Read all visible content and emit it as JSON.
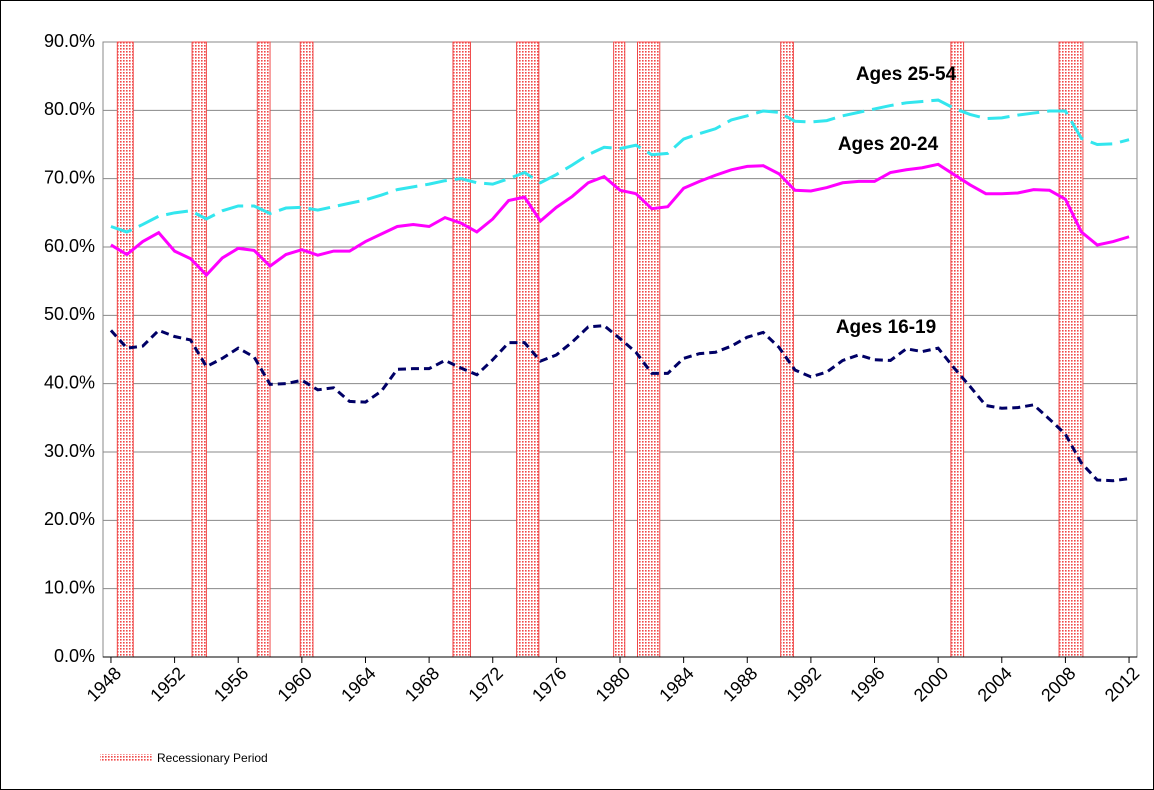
{
  "chart_data": {
    "type": "line",
    "x": [
      1948,
      1949,
      1950,
      1951,
      1952,
      1953,
      1954,
      1955,
      1956,
      1957,
      1958,
      1959,
      1960,
      1961,
      1962,
      1963,
      1964,
      1965,
      1966,
      1967,
      1968,
      1969,
      1970,
      1971,
      1972,
      1973,
      1974,
      1975,
      1976,
      1977,
      1978,
      1979,
      1980,
      1981,
      1982,
      1983,
      1984,
      1985,
      1986,
      1987,
      1988,
      1989,
      1990,
      1991,
      1992,
      1993,
      1994,
      1995,
      1996,
      1997,
      1998,
      1999,
      2000,
      2001,
      2002,
      2003,
      2004,
      2005,
      2006,
      2007,
      2008,
      2009,
      2010,
      2011,
      2012
    ],
    "series": [
      {
        "name": "Ages 25-54",
        "color": "#33e6ee",
        "linestyle": "long-dash",
        "values": [
          63.0,
          62.2,
          63.3,
          64.5,
          65.0,
          65.3,
          64.1,
          65.3,
          66.0,
          66.0,
          64.9,
          65.7,
          65.8,
          65.4,
          65.9,
          66.4,
          66.9,
          67.6,
          68.4,
          68.8,
          69.2,
          69.7,
          70.0,
          69.4,
          69.2,
          70.0,
          70.9,
          69.4,
          70.6,
          72.0,
          73.5,
          74.6,
          74.4,
          74.9,
          73.5,
          73.7,
          75.8,
          76.6,
          77.3,
          78.6,
          79.2,
          79.9,
          79.7,
          78.4,
          78.3,
          78.5,
          79.2,
          79.7,
          80.2,
          80.7,
          81.1,
          81.3,
          81.5,
          80.3,
          79.4,
          78.8,
          78.9,
          79.3,
          79.6,
          79.9,
          79.9,
          75.9,
          75.0,
          75.1,
          75.7
        ]
      },
      {
        "name": "Ages 20-24",
        "color": "#ff00ff",
        "linestyle": "solid",
        "values": [
          60.3,
          58.9,
          60.8,
          62.1,
          59.4,
          58.3,
          55.9,
          58.4,
          59.8,
          59.5,
          57.2,
          58.9,
          59.6,
          58.8,
          59.4,
          59.4,
          60.8,
          61.9,
          63.0,
          63.3,
          63.0,
          64.3,
          63.5,
          62.2,
          64.1,
          66.8,
          67.3,
          63.8,
          65.8,
          67.4,
          69.4,
          70.3,
          68.3,
          67.8,
          65.6,
          65.9,
          68.6,
          69.6,
          70.5,
          71.3,
          71.8,
          71.9,
          70.7,
          68.3,
          68.2,
          68.7,
          69.4,
          69.6,
          69.6,
          70.9,
          71.3,
          71.6,
          72.1,
          70.6,
          69.1,
          67.8,
          67.8,
          67.9,
          68.4,
          68.3,
          67.0,
          62.2,
          60.3,
          60.8,
          61.5
        ]
      },
      {
        "name": "Ages 16-19",
        "color": "#000066",
        "linestyle": "short-dash",
        "values": [
          47.8,
          45.2,
          45.5,
          47.8,
          46.9,
          46.4,
          42.5,
          43.7,
          45.2,
          43.9,
          39.9,
          40.0,
          40.5,
          39.1,
          39.4,
          37.4,
          37.3,
          38.9,
          42.1,
          42.2,
          42.2,
          43.4,
          42.3,
          41.3,
          43.5,
          46.0,
          46.0,
          43.3,
          44.2,
          46.1,
          48.3,
          48.5,
          46.6,
          44.6,
          41.5,
          41.5,
          43.7,
          44.4,
          44.6,
          45.5,
          46.8,
          47.5,
          45.3,
          42.0,
          41.0,
          41.7,
          43.4,
          44.2,
          43.5,
          43.4,
          45.1,
          44.7,
          45.2,
          42.3,
          39.6,
          36.8,
          36.4,
          36.5,
          36.9,
          34.8,
          32.6,
          28.4,
          25.9,
          25.8,
          26.1
        ]
      }
    ],
    "recessions": [
      [
        1948.4,
        1949.4
      ],
      [
        1953.1,
        1954.0
      ],
      [
        1957.2,
        1958.0
      ],
      [
        1959.9,
        1960.7
      ],
      [
        1969.5,
        1970.6
      ],
      [
        1973.5,
        1974.9
      ],
      [
        1979.6,
        1980.3
      ],
      [
        1981.1,
        1982.5
      ],
      [
        1990.1,
        1990.9
      ],
      [
        2000.8,
        2001.6
      ],
      [
        2007.6,
        2009.1
      ]
    ],
    "recession_label": "Recessionary Period",
    "xlim": [
      1947.5,
      2012.5
    ],
    "xticks": [
      1948,
      1952,
      1956,
      1960,
      1964,
      1968,
      1972,
      1976,
      1980,
      1984,
      1988,
      1992,
      1996,
      2000,
      2004,
      2008,
      2012
    ],
    "ylim": [
      0,
      90
    ],
    "yticks": [
      {
        "value": 0,
        "label": "0.0%"
      },
      {
        "value": 10,
        "label": "10.0%"
      },
      {
        "value": 20,
        "label": "20.0%"
      },
      {
        "value": 30,
        "label": "30.0%"
      },
      {
        "value": 40,
        "label": "40.0%"
      },
      {
        "value": 50,
        "label": "50.0%"
      },
      {
        "value": 60,
        "label": "60.0%"
      },
      {
        "value": 70,
        "label": "70.0%"
      },
      {
        "value": 80,
        "label": "80.0%"
      },
      {
        "value": 90,
        "label": "90.0%"
      }
    ],
    "grid": true
  }
}
